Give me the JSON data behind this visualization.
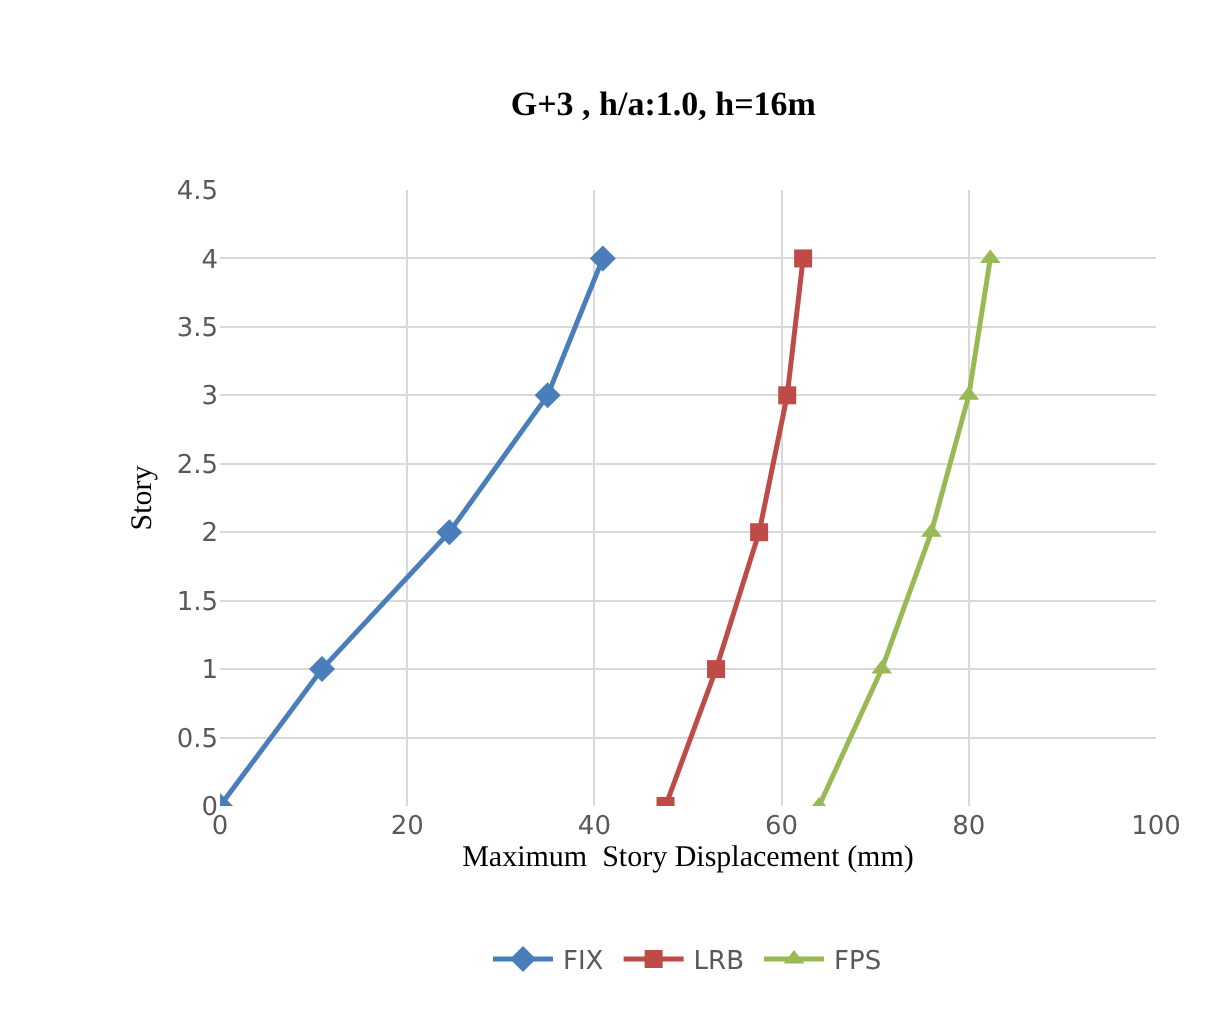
{
  "chart_data": {
    "type": "line",
    "title": "G+3 , h/a:1.0, h=16m",
    "xlabel": "Maximum  Story Displacement (mm)",
    "ylabel": "Story",
    "series": [
      {
        "name": "FIX",
        "color": "#4a7ebb",
        "marker": "diamond",
        "x": [
          0,
          10.9,
          24.5,
          35,
          40.9
        ],
        "values": [
          0,
          1,
          2,
          3,
          4
        ]
      },
      {
        "name": "LRB",
        "color": "#be4b48",
        "marker": "square",
        "x": [
          47.6,
          53,
          57.6,
          60.6,
          62.3
        ],
        "values": [
          0,
          1,
          2,
          3,
          4
        ]
      },
      {
        "name": "FPS",
        "color": "#98b954",
        "marker": "triangle",
        "x": [
          64,
          70.7,
          76,
          80,
          82.3
        ],
        "values": [
          0,
          1,
          2,
          3,
          4
        ]
      }
    ],
    "xlim": [
      0,
      100
    ],
    "xticks": [
      0,
      20,
      40,
      60,
      80,
      100
    ],
    "ylim": [
      0,
      4.5
    ],
    "yticks": [
      0,
      0.5,
      1,
      1.5,
      2,
      2.5,
      3,
      3.5,
      4,
      4.5
    ],
    "grid": true,
    "legend": "bottom",
    "line_style": "solid"
  }
}
